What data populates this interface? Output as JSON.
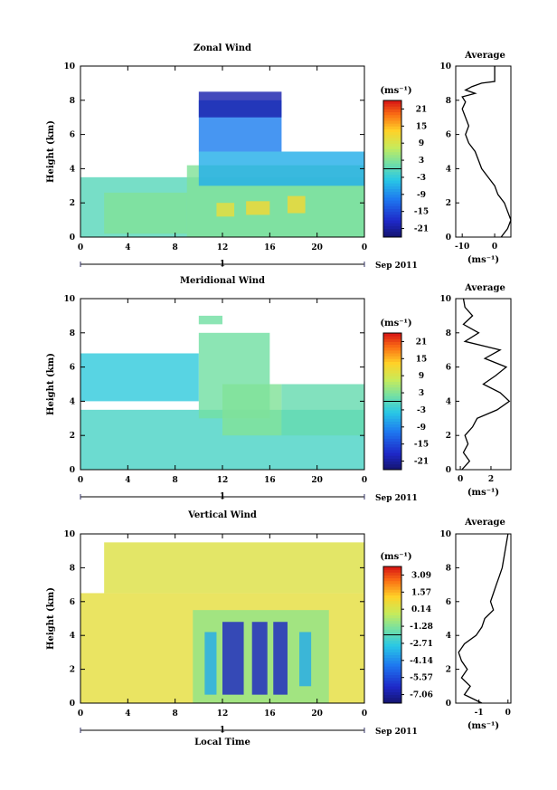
{
  "chart_data": [
    {
      "type": "heatmap",
      "title": "Zonal Wind",
      "ylabel": "Height (km)",
      "xlabel": "",
      "date_label": "Sep 2011",
      "day_label": "1",
      "x_ticks": [
        "0",
        "4",
        "8",
        "12",
        "16",
        "20",
        "0"
      ],
      "y_ticks": [
        "0",
        "2",
        "4",
        "6",
        "8",
        "10"
      ],
      "xlim": [
        0,
        24
      ],
      "ylim": [
        0,
        10
      ],
      "units": "(ms⁻¹)",
      "colorbar_ticks": [
        "21",
        "15",
        "9",
        "3",
        "-3",
        "-9",
        "-15",
        "-21"
      ],
      "colorbar_range": [
        -24,
        24
      ],
      "blobs": [
        {
          "x": [
            0,
            24
          ],
          "y": [
            0,
            3.5
          ],
          "v": 0
        },
        {
          "x": [
            2,
            9
          ],
          "y": [
            0.2,
            2.6
          ],
          "v": 3
        },
        {
          "x": [
            9,
            24
          ],
          "y": [
            0,
            4.2
          ],
          "v": 3
        },
        {
          "x": [
            10,
            24
          ],
          "y": [
            3,
            5
          ],
          "v": -6
        },
        {
          "x": [
            10,
            17
          ],
          "y": [
            5,
            8
          ],
          "v": -10
        },
        {
          "x": [
            10,
            17
          ],
          "y": [
            7,
            8.5
          ],
          "v": -20
        },
        {
          "x": [
            11.5,
            13
          ],
          "y": [
            1.2,
            2
          ],
          "v": 11
        },
        {
          "x": [
            14,
            16
          ],
          "y": [
            1.3,
            2.1
          ],
          "v": 12
        },
        {
          "x": [
            17.5,
            19
          ],
          "y": [
            1.4,
            2.4
          ],
          "v": 12
        }
      ],
      "profile": {
        "title": "Average",
        "xlabel": "(ms⁻¹)",
        "x_ticks": [
          "-10",
          "0"
        ],
        "xlim": [
          -12,
          5
        ],
        "h": [
          0,
          0.5,
          1,
          1.5,
          2,
          2.5,
          3,
          3.5,
          4,
          4.5,
          5,
          5.5,
          6,
          6.5,
          7,
          7.5,
          7.9,
          8.2,
          8.4,
          8.6,
          8.8,
          9,
          9.1,
          9.5,
          10
        ],
        "v": [
          2,
          4,
          5,
          4,
          3,
          1,
          0,
          -2,
          -4,
          -5,
          -6,
          -8,
          -9,
          -8,
          -9,
          -10,
          -9,
          -10,
          -6,
          -9,
          -7,
          -4,
          0,
          0,
          0
        ]
      }
    },
    {
      "type": "heatmap",
      "title": "Meridional Wind",
      "ylabel": "Height (km)",
      "xlabel": "",
      "date_label": "Sep 2011",
      "day_label": "1",
      "x_ticks": [
        "0",
        "4",
        "8",
        "12",
        "16",
        "20",
        "0"
      ],
      "y_ticks": [
        "0",
        "2",
        "4",
        "6",
        "8",
        "10"
      ],
      "xlim": [
        0,
        24
      ],
      "ylim": [
        0,
        10
      ],
      "units": "(ms⁻¹)",
      "colorbar_ticks": [
        "21",
        "15",
        "9",
        "3",
        "-3",
        "-9",
        "-15",
        "-21"
      ],
      "colorbar_range": [
        -24,
        24
      ],
      "blobs": [
        {
          "x": [
            0,
            24
          ],
          "y": [
            0,
            3.5
          ],
          "v": -1
        },
        {
          "x": [
            0,
            10
          ],
          "y": [
            4,
            6.8
          ],
          "v": -3
        },
        {
          "x": [
            10,
            16
          ],
          "y": [
            3,
            8
          ],
          "v": 2
        },
        {
          "x": [
            12,
            17
          ],
          "y": [
            2,
            5
          ],
          "v": 3
        },
        {
          "x": [
            17,
            24
          ],
          "y": [
            2,
            5
          ],
          "v": 1
        },
        {
          "x": [
            10,
            12
          ],
          "y": [
            8.5,
            9
          ],
          "v": 2
        }
      ],
      "profile": {
        "title": "Average",
        "xlabel": "(ms⁻¹)",
        "x_ticks": [
          "0",
          "2"
        ],
        "xlim": [
          -0.3,
          3.3
        ],
        "h": [
          0,
          0.5,
          1,
          1.5,
          2,
          2.5,
          3,
          3.5,
          4,
          4.5,
          5,
          5.5,
          6,
          6.5,
          7,
          7.5,
          8,
          8.5,
          9,
          9.5,
          10
        ],
        "v": [
          0.1,
          0.6,
          0.2,
          0.5,
          0.3,
          0.8,
          1.1,
          2.4,
          3.2,
          2.6,
          1.5,
          2.3,
          3.0,
          1.6,
          2.6,
          0.3,
          1.2,
          0.2,
          0.8,
          0.3,
          0.2
        ]
      }
    },
    {
      "type": "heatmap",
      "title": "Vertical Wind",
      "ylabel": "Height (km)",
      "xlabel": "Local Time",
      "date_label": "Sep 2011",
      "day_label": "1",
      "x_ticks": [
        "0",
        "4",
        "8",
        "12",
        "16",
        "20",
        "0"
      ],
      "y_ticks": [
        "0",
        "2",
        "4",
        "6",
        "8",
        "10"
      ],
      "xlim": [
        0,
        24
      ],
      "ylim": [
        0,
        10
      ],
      "units": "(ms⁻¹)",
      "colorbar_ticks": [
        "3.09",
        "1.57",
        "0.14",
        "-1.28",
        "-2.71",
        "-4.14",
        "-5.57",
        "-7.06"
      ],
      "colorbar_range": [
        -7.8,
        3.8
      ],
      "blobs": [
        {
          "x": [
            0,
            24
          ],
          "y": [
            0,
            6.5
          ],
          "v": 0.6
        },
        {
          "x": [
            9.5,
            21
          ],
          "y": [
            0,
            5.5
          ],
          "v": -1
        },
        {
          "x": [
            12,
            13.8
          ],
          "y": [
            0.5,
            4.8
          ],
          "v": -6.5
        },
        {
          "x": [
            14.5,
            15.8
          ],
          "y": [
            0.5,
            4.8
          ],
          "v": -6.5
        },
        {
          "x": [
            16.3,
            17.5
          ],
          "y": [
            0.5,
            4.8
          ],
          "v": -6.5
        },
        {
          "x": [
            10.5,
            11.5
          ],
          "y": [
            0.5,
            4.2
          ],
          "v": -3.5
        },
        {
          "x": [
            18.5,
            19.5
          ],
          "y": [
            1,
            4.2
          ],
          "v": -3.5
        },
        {
          "x": [
            2,
            24
          ],
          "y": [
            6.5,
            9.5
          ],
          "v": 0.4
        }
      ],
      "profile": {
        "title": "Average",
        "xlabel": "(ms⁻¹)",
        "x_ticks": [
          "-1",
          "0"
        ],
        "xlim": [
          -1.8,
          0.1
        ],
        "h": [
          0,
          0.5,
          1,
          1.5,
          2,
          2.5,
          3,
          3.5,
          4,
          4.5,
          5,
          5.5,
          6,
          6.5,
          7,
          7.5,
          8,
          8.5,
          9,
          9.5,
          10
        ],
        "v": [
          -0.9,
          -1.5,
          -1.3,
          -1.6,
          -1.4,
          -1.6,
          -1.7,
          -1.5,
          -1.1,
          -0.9,
          -0.8,
          -0.5,
          -0.6,
          -0.5,
          -0.4,
          -0.3,
          -0.2,
          -0.15,
          -0.1,
          -0.05,
          0.0
        ]
      }
    }
  ]
}
